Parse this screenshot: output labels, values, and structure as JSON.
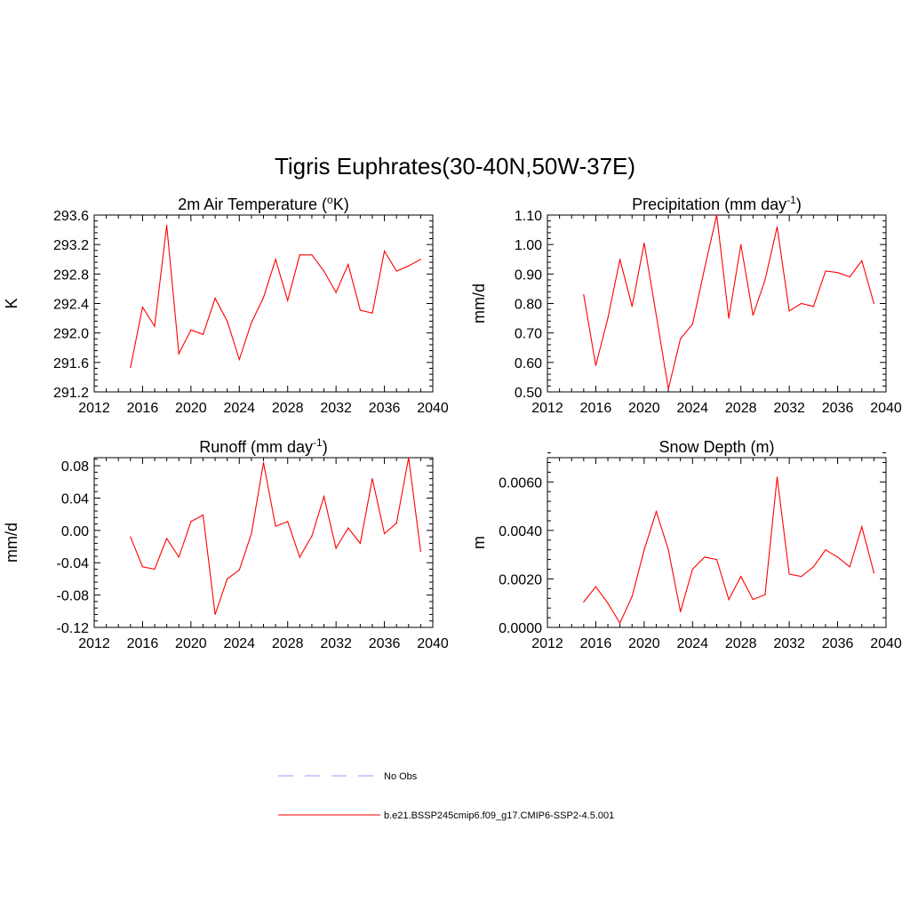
{
  "figure": {
    "title": "Tigris Euphrates(30-40N,50W-37E)"
  },
  "legend": {
    "entries": [
      {
        "label": "No Obs",
        "color": "#9999ff",
        "dash": true
      },
      {
        "label": "b.e21.BSSP245cmip6.f09_g17.CMIP6-SSP2-4.5.001",
        "color": "#ff0000",
        "dash": false
      }
    ]
  },
  "chart_data": [
    {
      "type": "line",
      "title": "2m Air Temperature (",
      "title_sup": "o",
      "title_end": "K)",
      "xlabel": "",
      "ylabel": "K",
      "xlim": [
        2012,
        2040
      ],
      "ylim": [
        291.2,
        293.6
      ],
      "xticks": [
        2012,
        2016,
        2020,
        2024,
        2028,
        2032,
        2036,
        2040
      ],
      "yticks": [
        "291.2",
        "291.6",
        "292.0",
        "292.4",
        "292.8",
        "293.2",
        "293.6"
      ],
      "color": "#ff0000",
      "x": [
        2015,
        2016,
        2017,
        2018,
        2019,
        2020,
        2021,
        2022,
        2023,
        2024,
        2025,
        2026,
        2027,
        2028,
        2029,
        2030,
        2031,
        2032,
        2033,
        2034,
        2035,
        2036,
        2037,
        2038,
        2039
      ],
      "y": [
        291.53,
        292.35,
        292.09,
        293.46,
        291.72,
        292.04,
        291.98,
        292.47,
        292.16,
        291.64,
        292.14,
        292.48,
        293.0,
        292.44,
        293.06,
        293.06,
        292.84,
        292.55,
        292.93,
        292.31,
        292.27,
        293.11,
        292.84,
        292.91,
        293.0
      ]
    },
    {
      "type": "line",
      "title": "Precipitation (mm day",
      "title_sup": "-1",
      "title_end": ")",
      "xlabel": "",
      "ylabel": "mm/d",
      "xlim": [
        2012,
        2040
      ],
      "ylim": [
        0.5,
        1.1
      ],
      "xticks": [
        2012,
        2016,
        2020,
        2024,
        2028,
        2032,
        2036,
        2040
      ],
      "yticks": [
        "0.50",
        "0.60",
        "0.70",
        "0.80",
        "0.90",
        "1.00",
        "1.10"
      ],
      "color": "#ff0000",
      "x": [
        2015,
        2016,
        2017,
        2018,
        2019,
        2020,
        2021,
        2022,
        2023,
        2024,
        2025,
        2026,
        2027,
        2028,
        2029,
        2030,
        2031,
        2032,
        2033,
        2034,
        2035,
        2036,
        2037,
        2038,
        2039
      ],
      "y": [
        0.83,
        0.59,
        0.75,
        0.95,
        0.79,
        1.005,
        0.76,
        0.51,
        0.68,
        0.73,
        0.92,
        1.1,
        0.75,
        1.0,
        0.76,
        0.88,
        1.06,
        0.775,
        0.8,
        0.79,
        0.91,
        0.905,
        0.89,
        0.945,
        0.8
      ]
    },
    {
      "type": "line",
      "title": "Runoff (mm day",
      "title_sup": "-1",
      "title_end": ")",
      "xlabel": "",
      "ylabel": "mm/d",
      "xlim": [
        2012,
        2040
      ],
      "ylim": [
        -0.12,
        0.09
      ],
      "xticks": [
        2012,
        2016,
        2020,
        2024,
        2028,
        2032,
        2036,
        2040
      ],
      "yticks": [
        "-0.12",
        "-0.08",
        "-0.04",
        "0.00",
        "0.04",
        "0.08"
      ],
      "color": "#ff0000",
      "x": [
        2015,
        2016,
        2017,
        2018,
        2019,
        2020,
        2021,
        2022,
        2023,
        2024,
        2025,
        2026,
        2027,
        2028,
        2029,
        2030,
        2031,
        2032,
        2033,
        2034,
        2035,
        2036,
        2037,
        2038,
        2039
      ],
      "y": [
        -0.008,
        -0.045,
        -0.048,
        -0.01,
        -0.033,
        0.011,
        0.019,
        -0.104,
        -0.06,
        -0.049,
        -0.004,
        0.084,
        0.005,
        0.011,
        -0.033,
        -0.007,
        0.042,
        -0.022,
        0.003,
        -0.016,
        0.064,
        -0.004,
        0.009,
        0.09,
        -0.026
      ]
    },
    {
      "type": "line",
      "title": "Snow Depth (m)",
      "title_sup": "",
      "title_end": "",
      "xlabel": "",
      "ylabel": "m",
      "xlim": [
        2012,
        2040
      ],
      "ylim": [
        0,
        0.007
      ],
      "xticks": [
        2012,
        2016,
        2020,
        2024,
        2028,
        2032,
        2036,
        2040
      ],
      "yticks": [
        "0.0000",
        "0.0020",
        "0.0040",
        "0.0060"
      ],
      "color": "#ff0000",
      "x": [
        2015,
        2016,
        2017,
        2018,
        2019,
        2020,
        2021,
        2022,
        2023,
        2024,
        2025,
        2026,
        2027,
        2028,
        2029,
        2030,
        2031,
        2032,
        2033,
        2034,
        2035,
        2036,
        2037,
        2038,
        2039
      ],
      "y": [
        0.00105,
        0.00168,
        0.001,
        0.00018,
        0.00128,
        0.0032,
        0.00478,
        0.0032,
        0.00065,
        0.0024,
        0.0029,
        0.0028,
        0.00115,
        0.0021,
        0.00115,
        0.00135,
        0.0062,
        0.0022,
        0.0021,
        0.0025,
        0.0032,
        0.0029,
        0.0025,
        0.00415,
        0.00225
      ]
    }
  ]
}
